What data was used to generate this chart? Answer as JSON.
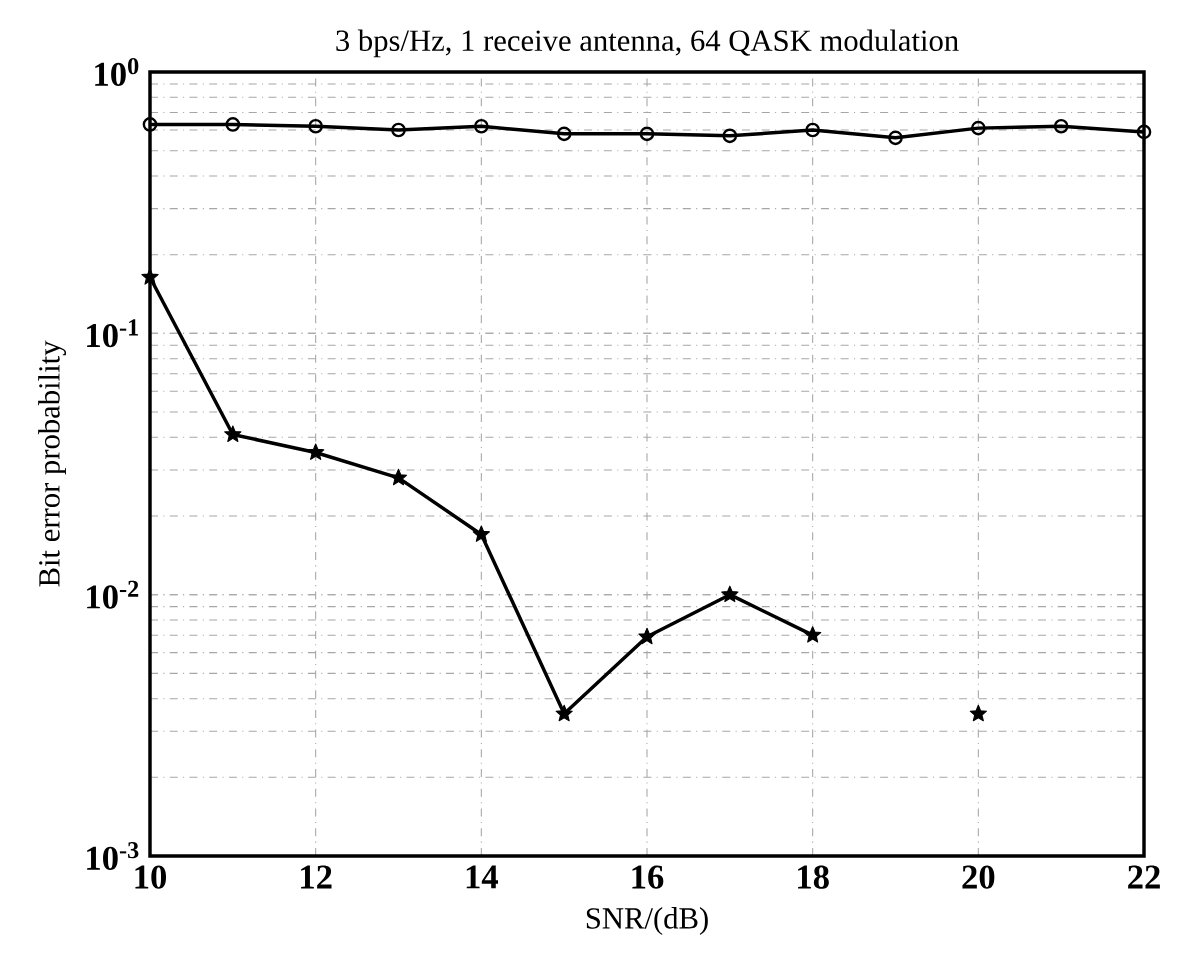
{
  "chart_data": {
    "type": "line",
    "title": "3 bps/Hz, 1 receive antenna, 64 QASK modulation",
    "xlabel": "SNR/(dB)",
    "ylabel": "Bit error probability",
    "x": [
      10,
      11,
      12,
      13,
      14,
      15,
      16,
      17,
      18,
      19,
      20,
      21,
      22
    ],
    "series": [
      {
        "color": "#000000",
        "marker": "circle",
        "values": [
          0.63,
          0.63,
          0.62,
          0.6,
          0.62,
          0.58,
          0.58,
          0.57,
          0.6,
          0.56,
          0.61,
          0.62,
          0.59
        ]
      },
      {
        "color": "#000000",
        "marker": "star",
        "values": [
          0.164,
          0.041,
          0.035,
          0.028,
          0.017,
          0.0035,
          0.0069,
          0.01,
          0.007,
          null,
          0.0035,
          null,
          null
        ]
      }
    ],
    "log": "y",
    "grid": true,
    "line_style": "solid",
    "xlim": [
      10,
      22
    ],
    "xticks": [
      10,
      12,
      14,
      16,
      18,
      20,
      22
    ],
    "ylim": [
      0.001,
      1
    ],
    "yticks": [
      {
        "value": 0.001,
        "label": "10$^{-3}$"
      },
      {
        "value": 0.01,
        "label": "10$^{-2}$"
      },
      {
        "value": 0.1,
        "label": "10$^{-1}$"
      },
      {
        "value": 1,
        "label": "10$^{0}$"
      }
    ]
  }
}
